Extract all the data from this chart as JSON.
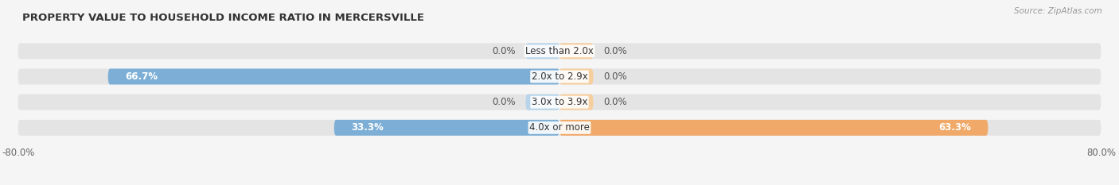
{
  "title": "PROPERTY VALUE TO HOUSEHOLD INCOME RATIO IN MERCERSVILLE",
  "source": "Source: ZipAtlas.com",
  "categories": [
    "Less than 2.0x",
    "2.0x to 2.9x",
    "3.0x to 3.9x",
    "4.0x or more"
  ],
  "without_mortgage": [
    0.0,
    66.7,
    0.0,
    33.3
  ],
  "with_mortgage": [
    0.0,
    0.0,
    0.0,
    63.3
  ],
  "xlim_left": -80,
  "xlim_right": 80,
  "color_without": "#7dafd6",
  "color_with": "#f0a968",
  "color_without_small": "#b8d4ea",
  "color_with_small": "#f5cfa0",
  "bar_height": 0.62,
  "background_bar_color": "#e4e4e4",
  "label_fontsize": 8.5,
  "title_fontsize": 9.5,
  "source_fontsize": 7.5,
  "legend_fontsize": 8.5,
  "cat_label_fontsize": 8.5,
  "value_label_color": "#555555",
  "title_color": "#333333",
  "bg_color": "#f5f5f5"
}
